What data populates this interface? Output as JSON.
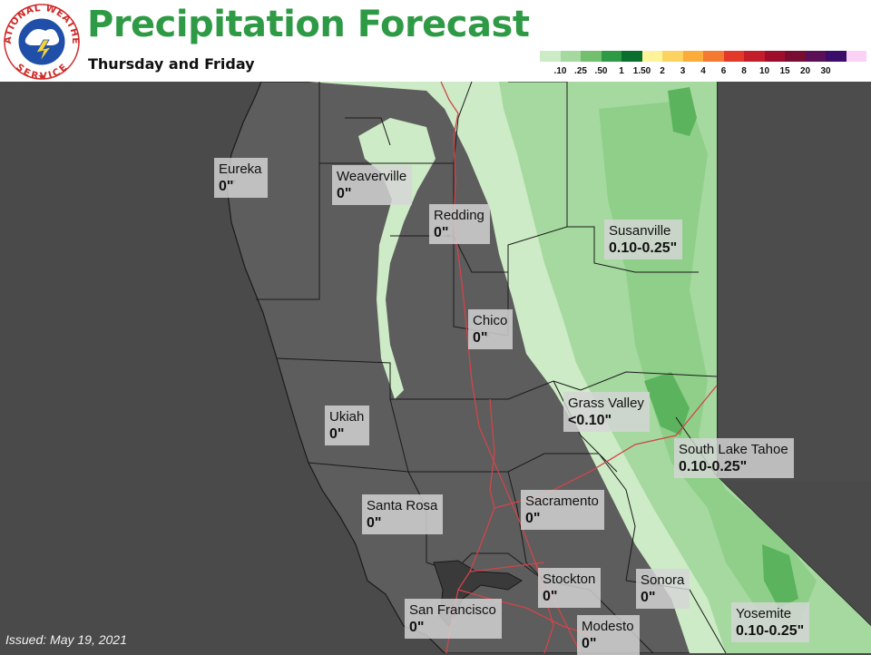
{
  "header": {
    "title": "Precipitation Forecast",
    "subtitle": "Thursday and Friday",
    "logo": {
      "text_top": "NATIONAL",
      "text_right": "WEATHER",
      "text_bottom": "SERVICE",
      "icon": "nws-logo"
    }
  },
  "legend": {
    "labels": [
      ".10",
      ".25",
      ".50",
      "1",
      "1.50",
      "2",
      "3",
      "4",
      "6",
      "8",
      "10",
      "15",
      "20",
      "30"
    ],
    "colors": [
      "#cdebc6",
      "#a5d99f",
      "#72c06e",
      "#2f9a45",
      "#0a6e2c",
      "#fdf49a",
      "#fdd35f",
      "#fbac3a",
      "#f37a30",
      "#e3392a",
      "#c41d2a",
      "#9e0e2c",
      "#780d31",
      "#5b0f57",
      "#3a0d6b",
      "#fbd2f5"
    ]
  },
  "cities": [
    {
      "name": "Eureka",
      "amount": "0\""
    },
    {
      "name": "Weaverville",
      "amount": "0\""
    },
    {
      "name": "Redding",
      "amount": "0\""
    },
    {
      "name": "Susanville",
      "amount": "0.10-0.25\""
    },
    {
      "name": "Chico",
      "amount": "0\""
    },
    {
      "name": "Grass Valley",
      "amount": "<0.10\""
    },
    {
      "name": "Ukiah",
      "amount": "0\""
    },
    {
      "name": "South Lake Tahoe",
      "amount": "0.10-0.25\""
    },
    {
      "name": "Santa Rosa",
      "amount": "0\""
    },
    {
      "name": "Sacramento",
      "amount": "0\""
    },
    {
      "name": "Stockton",
      "amount": "0\""
    },
    {
      "name": "Sonora",
      "amount": "0\""
    },
    {
      "name": "San Francisco",
      "amount": "0\""
    },
    {
      "name": "Modesto",
      "amount": "0\""
    },
    {
      "name": "Yosemite",
      "amount": "0.10-0.25\""
    }
  ],
  "footer": {
    "issued": "Issued: May 19, 2021"
  },
  "map": {
    "ocean_color": "#4a4a4a",
    "land_color": "#5d5d5d",
    "out_of_area_color": "#4c4c4c",
    "boundary_color": "#1a1a1a",
    "highway_color": "#d0454a"
  }
}
